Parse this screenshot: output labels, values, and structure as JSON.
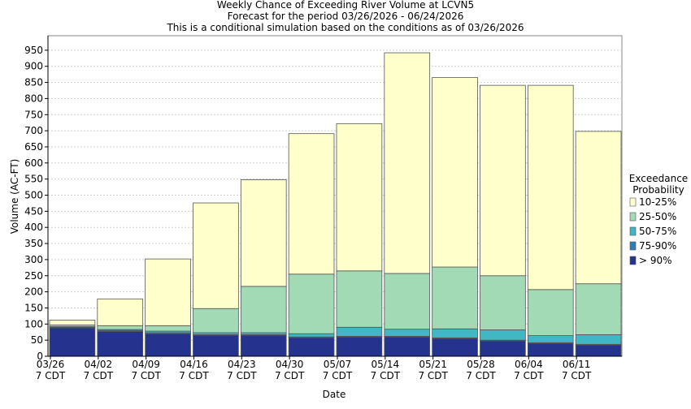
{
  "chart_data": {
    "type": "stacked_bar",
    "title": "Weekly Chance of Exceeding River Volume at LCVN5",
    "subtitle": "Forecast for the period 03/26/2026 - 06/24/2026",
    "note": "This is a conditional simulation based on the conditions as of 03/26/2026",
    "x_label": "Date",
    "y_label": "Volume (AC-FT)",
    "legend_title": "Exceedance\nProbability",
    "categories": [
      "03/26\n7 CDT",
      "04/02\n7 CDT",
      "04/09\n7 CDT",
      "04/16\n7 CDT",
      "04/23\n7 CDT",
      "04/30\n7 CDT",
      "05/07\n7 CDT",
      "05/14\n7 CDT",
      "05/21\n7 CDT",
      "05/28\n7 CDT",
      "06/04\n7 CDT",
      "06/11\n7 CDT"
    ],
    "series": [
      {
        "name": "> 90%",
        "color": "#25338f",
        "values": [
          88,
          77,
          70,
          65,
          65,
          58,
          60,
          60,
          55,
          48,
          40,
          35
        ]
      },
      {
        "name": "75-90%",
        "color": "#2b7cb9",
        "values": [
          2,
          3,
          3,
          2,
          2,
          2,
          2,
          2,
          2,
          2,
          2,
          2
        ]
      },
      {
        "name": "50-75%",
        "color": "#41b6c4",
        "values": [
          2,
          3,
          5,
          6,
          6,
          10,
          28,
          22,
          28,
          32,
          22,
          30
        ]
      },
      {
        "name": "25-50%",
        "color": "#a1dab4",
        "values": [
          5,
          12,
          17,
          75,
          144,
          185,
          175,
          173,
          192,
          168,
          143,
          158
        ]
      },
      {
        "name": "10-25%",
        "color": "#ffffcc",
        "values": [
          15,
          83,
          207,
          328,
          331,
          436,
          457,
          685,
          588,
          591,
          634,
          473
        ]
      }
    ],
    "ylim": [
      0,
      995
    ],
    "yticks": [
      0,
      50,
      100,
      150,
      200,
      250,
      300,
      350,
      400,
      450,
      500,
      550,
      600,
      650,
      700,
      750,
      800,
      850,
      900,
      950
    ],
    "grid": true
  }
}
